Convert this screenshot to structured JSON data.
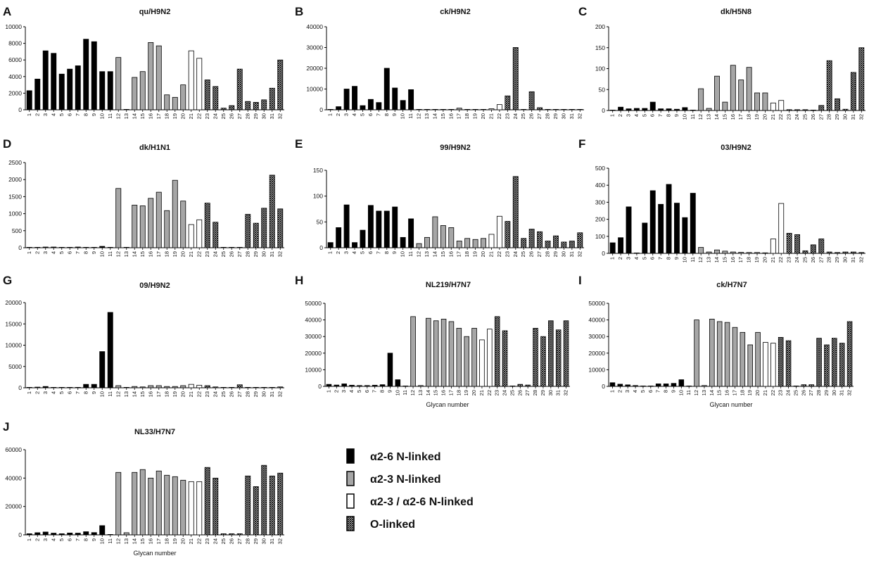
{
  "legend": [
    {
      "label": "α2-6 N-linked",
      "fill": "#000000"
    },
    {
      "label": "α2-3 N-linked",
      "fill": "#a6a6a6"
    },
    {
      "label": "α2-3 / α2-6 N-linked",
      "fill": "#ffffff"
    },
    {
      "label": "O-linked",
      "fill": "hatch"
    }
  ],
  "chart_data": [
    {
      "type": "bar",
      "panel": "A",
      "title": "qu/H9N2",
      "xlabel": "",
      "ylim": [
        0,
        10000
      ],
      "yticks": [
        0,
        2000,
        4000,
        6000,
        8000,
        10000
      ],
      "categories": [
        "1",
        "2",
        "3",
        "4",
        "5",
        "6",
        "7",
        "8",
        "9",
        "10",
        "11",
        "12",
        "13",
        "14",
        "15",
        "16",
        "17",
        "18",
        "19",
        "20",
        "21",
        "22",
        "23",
        "24",
        "25",
        "26",
        "27",
        "28",
        "29",
        "30",
        "31",
        "32"
      ],
      "values": [
        2300,
        3700,
        7100,
        6800,
        4300,
        4900,
        5300,
        8500,
        8200,
        4600,
        4600,
        6300,
        0,
        3900,
        4600,
        8100,
        7700,
        1800,
        1500,
        3000,
        7100,
        6200,
        3600,
        2800,
        200,
        500,
        4900,
        1000,
        900,
        1200,
        2600,
        6000
      ]
    },
    {
      "type": "bar",
      "panel": "B",
      "title": "ck/H9N2",
      "xlabel": "",
      "ylim": [
        0,
        40000
      ],
      "yticks": [
        0,
        10000,
        20000,
        30000,
        40000
      ],
      "categories": [
        "1",
        "2",
        "3",
        "4",
        "5",
        "6",
        "7",
        "8",
        "9",
        "10",
        "11",
        "12",
        "13",
        "14",
        "15",
        "16",
        "17",
        "18",
        "19",
        "20",
        "21",
        "22",
        "23",
        "24",
        "25",
        "26",
        "27",
        "28",
        "29",
        "30",
        "31",
        "32"
      ],
      "values": [
        0,
        1500,
        10000,
        11300,
        2000,
        5000,
        3500,
        20000,
        10500,
        4500,
        9700,
        0,
        0,
        0,
        0,
        0,
        800,
        0,
        0,
        0,
        500,
        2500,
        6700,
        30000,
        0,
        8700,
        1000,
        0,
        0,
        0,
        0,
        0
      ]
    },
    {
      "type": "bar",
      "panel": "C",
      "title": "dk/H5N8",
      "xlabel": "",
      "ylim": [
        0,
        200
      ],
      "yticks": [
        0,
        50,
        100,
        150,
        200
      ],
      "categories": [
        "1",
        "2",
        "3",
        "4",
        "5",
        "6",
        "7",
        "8",
        "9",
        "10",
        "11",
        "12",
        "13",
        "14",
        "15",
        "16",
        "17",
        "18",
        "19",
        "20",
        "21",
        "22",
        "23",
        "24",
        "25",
        "26",
        "27",
        "28",
        "29",
        "30",
        "31",
        "32"
      ],
      "values": [
        0,
        8,
        4,
        5,
        5,
        20,
        4,
        4,
        3,
        7,
        0,
        52,
        5,
        82,
        20,
        108,
        73,
        103,
        42,
        42,
        18,
        24,
        2,
        2,
        2,
        1,
        12,
        119,
        28,
        3,
        91,
        150
      ]
    },
    {
      "type": "bar",
      "panel": "D",
      "title": "dk/H1N1",
      "xlabel": "",
      "ylim": [
        0,
        2500
      ],
      "yticks": [
        0,
        500,
        1000,
        1500,
        2000,
        2500
      ],
      "categories": [
        "1",
        "2",
        "3",
        "4",
        "5",
        "6",
        "7",
        "8",
        "9",
        "10",
        "11",
        "12",
        "13",
        "14",
        "15",
        "16",
        "17",
        "18",
        "19",
        "20",
        "21",
        "22",
        "23",
        "24",
        "25",
        "26",
        "27",
        "28",
        "29",
        "30",
        "31",
        "32"
      ],
      "values": [
        0,
        10,
        20,
        20,
        10,
        10,
        20,
        10,
        10,
        40,
        0,
        1740,
        0,
        1250,
        1230,
        1450,
        1630,
        1090,
        1980,
        1370,
        680,
        820,
        1310,
        750,
        0,
        0,
        0,
        980,
        720,
        1160,
        2130,
        1140
      ]
    },
    {
      "type": "bar",
      "panel": "E",
      "title": "99/H9N2",
      "xlabel": "",
      "ylim": [
        0,
        150
      ],
      "yticks": [
        0,
        50,
        100,
        150
      ],
      "categories": [
        "1",
        "2",
        "3",
        "4",
        "5",
        "6",
        "7",
        "8",
        "9",
        "10",
        "11",
        "12",
        "13",
        "14",
        "15",
        "16",
        "17",
        "18",
        "19",
        "20",
        "21",
        "22",
        "23",
        "24",
        "25",
        "26",
        "27",
        "28",
        "29",
        "30",
        "31",
        "32"
      ],
      "values": [
        10,
        39,
        83,
        10,
        34,
        82,
        71,
        71,
        79,
        20,
        56,
        8,
        20,
        60,
        43,
        39,
        13,
        18,
        16,
        18,
        26,
        61,
        51,
        138,
        18,
        36,
        31,
        13,
        23,
        11,
        13,
        29
      ]
    },
    {
      "type": "bar",
      "panel": "F",
      "title": "03/H9N2",
      "xlabel": "",
      "ylim": [
        0,
        500
      ],
      "yticks": [
        0,
        100,
        200,
        300,
        400,
        500
      ],
      "categories": [
        "1",
        "2",
        "3",
        "4",
        "5",
        "6",
        "7",
        "8",
        "9",
        "10",
        "11",
        "12",
        "13",
        "14",
        "15",
        "16",
        "17",
        "18",
        "19",
        "20",
        "21",
        "22",
        "23",
        "24",
        "25",
        "26",
        "27",
        "28",
        "29",
        "30",
        "31",
        "32"
      ],
      "values": [
        62,
        92,
        273,
        2,
        178,
        368,
        288,
        405,
        295,
        210,
        353,
        35,
        8,
        20,
        13,
        8,
        6,
        5,
        5,
        3,
        85,
        293,
        118,
        110,
        15,
        50,
        85,
        8,
        5,
        8,
        8,
        5
      ]
    },
    {
      "type": "bar",
      "panel": "G",
      "title": "09/H9N2",
      "xlabel": "",
      "ylim": [
        0,
        20000
      ],
      "yticks": [
        0,
        5000,
        10000,
        15000,
        20000
      ],
      "categories": [
        "1",
        "2",
        "3",
        "4",
        "5",
        "6",
        "7",
        "8",
        "9",
        "10",
        "11",
        "12",
        "13",
        "14",
        "15",
        "16",
        "17",
        "18",
        "19",
        "20",
        "21",
        "22",
        "23",
        "24",
        "25",
        "26",
        "27",
        "28",
        "29",
        "30",
        "31",
        "32"
      ],
      "values": [
        100,
        150,
        300,
        50,
        50,
        50,
        100,
        800,
        800,
        8500,
        17700,
        500,
        100,
        300,
        200,
        500,
        500,
        300,
        300,
        500,
        800,
        600,
        500,
        200,
        0,
        0,
        700,
        0,
        0,
        0,
        0,
        200
      ]
    },
    {
      "type": "bar",
      "panel": "H",
      "title": "NL219/H7N7",
      "xlabel": "Glycan number",
      "ylim": [
        0,
        50000
      ],
      "yticks": [
        0,
        10000,
        20000,
        30000,
        40000,
        50000
      ],
      "categories": [
        "1",
        "2",
        "3",
        "4",
        "5",
        "6",
        "7",
        "8",
        "9",
        "10",
        "11",
        "12",
        "13",
        "14",
        "15",
        "16",
        "17",
        "18",
        "19",
        "20",
        "21",
        "22",
        "23",
        "24",
        "25",
        "26",
        "27",
        "28",
        "29",
        "30",
        "31",
        "32"
      ],
      "values": [
        1200,
        800,
        1500,
        700,
        500,
        500,
        700,
        1000,
        20000,
        4000,
        0,
        42000,
        500,
        41000,
        39500,
        40500,
        39000,
        35000,
        30000,
        35000,
        28000,
        34500,
        42000,
        33500,
        0,
        1200,
        800,
        35000,
        30000,
        39500,
        34000,
        39500
      ]
    },
    {
      "type": "bar",
      "panel": "I",
      "title": "ck/H7N7",
      "xlabel": "Glycan number",
      "ylim": [
        0,
        50000
      ],
      "yticks": [
        0,
        10000,
        20000,
        30000,
        40000,
        50000
      ],
      "categories": [
        "1",
        "2",
        "3",
        "4",
        "5",
        "6",
        "7",
        "8",
        "9",
        "10",
        "11",
        "12",
        "13",
        "14",
        "15",
        "16",
        "17",
        "18",
        "19",
        "20",
        "21",
        "22",
        "23",
        "24",
        "25",
        "26",
        "27",
        "28",
        "29",
        "30",
        "31",
        "32"
      ],
      "values": [
        2200,
        1300,
        900,
        500,
        200,
        200,
        1500,
        1500,
        1800,
        4000,
        0,
        40000,
        500,
        40500,
        39000,
        38500,
        35500,
        32500,
        25000,
        32500,
        26500,
        26000,
        29500,
        27500,
        0,
        1000,
        1000,
        29000,
        25000,
        29000,
        26000,
        39000
      ]
    },
    {
      "type": "bar",
      "panel": "J",
      "title": "NL33/H7N7",
      "xlabel": "Glycan number",
      "ylim": [
        0,
        60000
      ],
      "yticks": [
        0,
        20000,
        40000,
        60000
      ],
      "categories": [
        "1",
        "2",
        "3",
        "4",
        "5",
        "6",
        "7",
        "8",
        "9",
        "10",
        "11",
        "12",
        "13",
        "14",
        "15",
        "16",
        "17",
        "18",
        "19",
        "20",
        "21",
        "22",
        "23",
        "24",
        "25",
        "26",
        "27",
        "28",
        "29",
        "30",
        "31",
        "32"
      ],
      "values": [
        800,
        1500,
        2000,
        1200,
        800,
        1300,
        1200,
        2200,
        1600,
        6500,
        0,
        44000,
        1500,
        44000,
        46000,
        40000,
        45000,
        42000,
        41000,
        38500,
        37500,
        37500,
        47500,
        40000,
        800,
        800,
        800,
        41500,
        34000,
        49000,
        41500,
        43500
      ]
    }
  ]
}
